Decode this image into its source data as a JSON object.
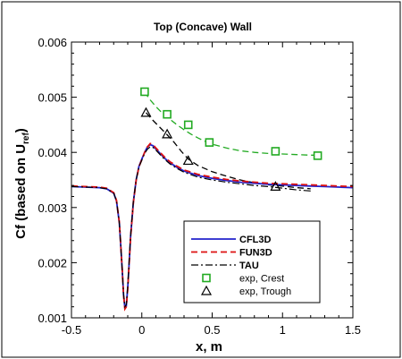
{
  "chart_data": {
    "type": "line",
    "title": "Top (Concave) Wall",
    "xlabel": "x, m",
    "ylabel_main": "Cf (based on U",
    "ylabel_sub": "ref",
    "ylabel_close": ")",
    "xlim": [
      -0.5,
      1.5
    ],
    "ylim": [
      0.001,
      0.006
    ],
    "xticks": [
      -0.5,
      0,
      0.5,
      1,
      1.5
    ],
    "xtick_labels": [
      "-0.5",
      "0",
      "0.5",
      "1",
      "1.5"
    ],
    "yticks": [
      0.001,
      0.002,
      0.003,
      0.004,
      0.005,
      0.006
    ],
    "ytick_labels": [
      "0.001",
      "0.002",
      "0.003",
      "0.004",
      "0.005",
      "0.006"
    ],
    "legend_position": "bottom-right",
    "series": [
      {
        "name": "CFL3D",
        "style": "solid",
        "color": "#2222cc",
        "x": [
          -0.5,
          -0.4,
          -0.3,
          -0.25,
          -0.2,
          -0.18,
          -0.16,
          -0.14,
          -0.13,
          -0.12,
          -0.11,
          -0.1,
          -0.09,
          -0.08,
          -0.06,
          -0.04,
          -0.02,
          0,
          0.02,
          0.04,
          0.06,
          0.08,
          0.1,
          0.13,
          0.16,
          0.2,
          0.25,
          0.3,
          0.4,
          0.5,
          0.6,
          0.7,
          0.8,
          0.9,
          1.0,
          1.1,
          1.2,
          1.3,
          1.4,
          1.5
        ],
        "y": [
          0.00338,
          0.00337,
          0.00336,
          0.00334,
          0.00326,
          0.00312,
          0.00272,
          0.0019,
          0.00142,
          0.00118,
          0.00122,
          0.00155,
          0.002,
          0.00245,
          0.0031,
          0.0035,
          0.00375,
          0.00388,
          0.004,
          0.0041,
          0.00414,
          0.00412,
          0.00406,
          0.00398,
          0.0039,
          0.00381,
          0.00373,
          0.00366,
          0.00358,
          0.00353,
          0.00349,
          0.00346,
          0.00344,
          0.00342,
          0.00341,
          0.0034,
          0.00339,
          0.00338,
          0.00337,
          0.00336
        ]
      },
      {
        "name": "FUN3D",
        "style": "dashed",
        "color": "#dd1111",
        "x": [
          -0.5,
          -0.4,
          -0.3,
          -0.25,
          -0.2,
          -0.18,
          -0.16,
          -0.14,
          -0.13,
          -0.12,
          -0.11,
          -0.1,
          -0.09,
          -0.08,
          -0.06,
          -0.04,
          -0.02,
          0,
          0.02,
          0.04,
          0.06,
          0.08,
          0.1,
          0.13,
          0.16,
          0.2,
          0.25,
          0.3,
          0.4,
          0.5,
          0.6,
          0.7,
          0.8,
          0.9,
          1.0,
          1.1,
          1.2,
          1.3,
          1.4,
          1.5
        ],
        "y": [
          0.00339,
          0.00338,
          0.00337,
          0.00335,
          0.00327,
          0.00313,
          0.00273,
          0.00191,
          0.00141,
          0.00116,
          0.0012,
          0.00153,
          0.00199,
          0.00244,
          0.00309,
          0.00349,
          0.00374,
          0.00387,
          0.004,
          0.0041,
          0.00416,
          0.00414,
          0.00408,
          0.004,
          0.00392,
          0.00383,
          0.00375,
          0.00368,
          0.0036,
          0.00355,
          0.00351,
          0.00348,
          0.00346,
          0.00344,
          0.00343,
          0.00342,
          0.00341,
          0.0034,
          0.00339,
          0.00338
        ]
      },
      {
        "name": "TAU",
        "style": "dashdot",
        "color": "#000000",
        "x": [
          -0.5,
          -0.4,
          -0.3,
          -0.25,
          -0.2,
          -0.18,
          -0.16,
          -0.14,
          -0.13,
          -0.12,
          -0.11,
          -0.1,
          -0.09,
          -0.08,
          -0.06,
          -0.04,
          -0.02,
          0,
          0.02,
          0.04,
          0.06,
          0.08,
          0.1,
          0.13,
          0.16,
          0.2,
          0.25,
          0.3,
          0.4,
          0.5,
          0.6,
          0.7,
          0.8,
          0.9,
          1.0,
          1.1,
          1.2
        ],
        "y": [
          0.00338,
          0.00337,
          0.00336,
          0.00334,
          0.00326,
          0.00312,
          0.00272,
          0.0019,
          0.00142,
          0.0012,
          0.00124,
          0.00157,
          0.00202,
          0.00247,
          0.00311,
          0.0035,
          0.00374,
          0.00386,
          0.00398,
          0.00406,
          0.0041,
          0.00409,
          0.00404,
          0.00396,
          0.00388,
          0.00379,
          0.00371,
          0.00364,
          0.00355,
          0.0035,
          0.00346,
          0.00343,
          0.0034,
          0.00338,
          0.00335,
          0.00332,
          0.0033
        ]
      },
      {
        "name": "exp, Crest",
        "style": "markers-square",
        "color": "#22aa22",
        "x": [
          0.02,
          0.18,
          0.33,
          0.48,
          0.95,
          1.25
        ],
        "y": [
          0.0051,
          0.00469,
          0.0045,
          0.00418,
          0.00402,
          0.00394
        ]
      },
      {
        "name": "exp, Trough",
        "style": "markers-triangle",
        "color": "#000000",
        "x": [
          0.03,
          0.18,
          0.33,
          0.95
        ],
        "y": [
          0.00472,
          0.00433,
          0.00385,
          0.00338
        ]
      }
    ],
    "crest_fit": {
      "style": "dashed",
      "color": "#22aa22",
      "x": [
        0.02,
        0.05,
        0.1,
        0.15,
        0.2,
        0.25,
        0.3,
        0.35,
        0.4,
        0.45,
        0.5,
        0.6,
        0.7,
        0.8,
        0.9,
        1.0,
        1.1,
        1.2,
        1.25
      ],
      "y": [
        0.0051,
        0.00498,
        0.00483,
        0.0047,
        0.0046,
        0.0045,
        0.00441,
        0.00433,
        0.00426,
        0.0042,
        0.00415,
        0.00408,
        0.00403,
        0.004,
        0.00398,
        0.00397,
        0.00396,
        0.00395,
        0.00395
      ]
    },
    "trough_fit": {
      "style": "dashed",
      "color": "#000000",
      "x": [
        0.03,
        0.08,
        0.13,
        0.18,
        0.23,
        0.28,
        0.33,
        0.4,
        0.5,
        0.6,
        0.7,
        0.8,
        0.9,
        0.95,
        1.0,
        1.1,
        1.15,
        1.2
      ],
      "y": [
        0.00472,
        0.00458,
        0.00445,
        0.00432,
        0.00418,
        0.00402,
        0.00388,
        0.00376,
        0.00365,
        0.00357,
        0.0035,
        0.00345,
        0.00341,
        0.0034,
        0.00339,
        0.00336,
        0.00335,
        0.00334
      ]
    }
  }
}
